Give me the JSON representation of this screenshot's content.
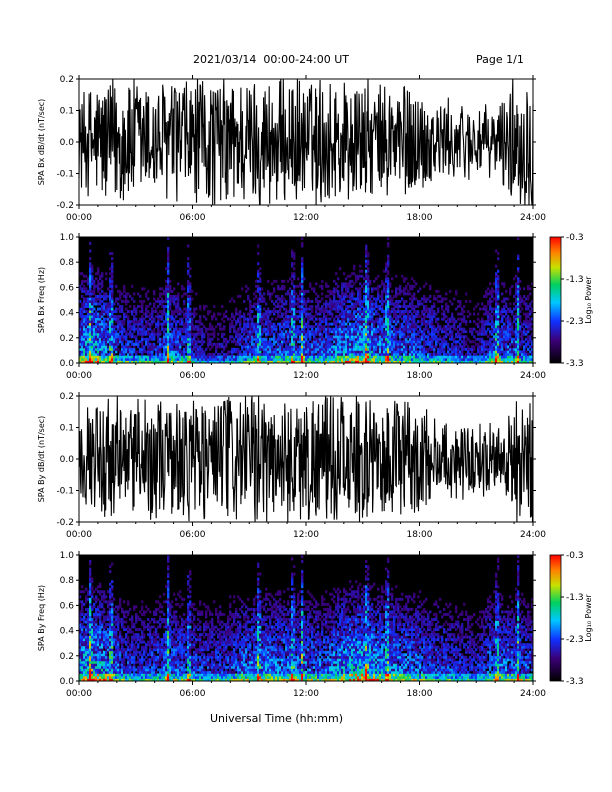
{
  "header": {
    "title": "2021/03/14  00:00-24:00 UT",
    "page": "Page 1/1"
  },
  "x_axis_label": "Universal Time (hh:mm)",
  "chart_data": [
    {
      "type": "line",
      "ylabel": "SPA Bx dB/dt (nT/sec)",
      "xlim": [
        0,
        24
      ],
      "ylim": [
        -0.2,
        0.2
      ],
      "xticks": [
        "00:00",
        "06:00",
        "12:00",
        "18:00",
        "24:00"
      ],
      "yticks": [
        "-0.2",
        "-0.1",
        "0.0",
        "0.1",
        "0.2"
      ],
      "envelope": {
        "hours": [
          0,
          1,
          2,
          3,
          4,
          5,
          6,
          7,
          8,
          9,
          10,
          11,
          12,
          13,
          14,
          15,
          16,
          17,
          18,
          19,
          20,
          21,
          22,
          23,
          24
        ],
        "amplitude": [
          0.14,
          0.19,
          0.2,
          0.2,
          0.18,
          0.19,
          0.2,
          0.2,
          0.2,
          0.2,
          0.2,
          0.2,
          0.19,
          0.2,
          0.2,
          0.18,
          0.17,
          0.2,
          0.16,
          0.13,
          0.12,
          0.11,
          0.1,
          0.2,
          0.2
        ]
      },
      "color": "#000000"
    },
    {
      "type": "heatmap",
      "ylabel": "SPA Bx Freq (Hz)",
      "xlim": [
        0,
        24
      ],
      "ylim": [
        0,
        1.0
      ],
      "xticks": [
        "00:00",
        "06:00",
        "12:00",
        "18:00",
        "24:00"
      ],
      "yticks": [
        "0.0",
        "0.2",
        "0.4",
        "0.6",
        "0.8",
        "1.0"
      ],
      "colorbar": {
        "label": "Log₁₀ Power",
        "ticks": [
          "-0.3",
          "-1.3",
          "-2.3",
          "-3.3"
        ],
        "range": [
          -3.3,
          -0.3
        ]
      },
      "bright_bands_hours": [
        0.6,
        1.7,
        4.7,
        5.8,
        9.5,
        11.3,
        11.8,
        15.2,
        16.3,
        22.1,
        23.2
      ],
      "activity_level_by_hour": [
        0.7,
        0.75,
        0.55,
        0.5,
        0.5,
        0.6,
        0.45,
        0.35,
        0.4,
        0.55,
        0.55,
        0.6,
        0.55,
        0.55,
        0.7,
        0.75,
        0.65,
        0.6,
        0.55,
        0.5,
        0.45,
        0.4,
        0.6,
        0.55,
        0.5
      ]
    },
    {
      "type": "line",
      "ylabel": "SPA By dB/dt (nT/sec)",
      "xlim": [
        0,
        24
      ],
      "ylim": [
        -0.2,
        0.2
      ],
      "xticks": [
        "00:00",
        "06:00",
        "12:00",
        "18:00",
        "24:00"
      ],
      "yticks": [
        "-0.2",
        "-0.1",
        "0.0",
        "0.1",
        "0.2"
      ],
      "envelope": {
        "hours": [
          0,
          1,
          2,
          3,
          4,
          5,
          6,
          7,
          8,
          9,
          10,
          11,
          12,
          13,
          14,
          15,
          16,
          17,
          18,
          19,
          20,
          21,
          22,
          23,
          24
        ],
        "amplitude": [
          0.13,
          0.18,
          0.2,
          0.2,
          0.17,
          0.19,
          0.2,
          0.2,
          0.2,
          0.2,
          0.19,
          0.2,
          0.19,
          0.2,
          0.2,
          0.18,
          0.17,
          0.2,
          0.16,
          0.13,
          0.12,
          0.11,
          0.1,
          0.2,
          0.2
        ]
      },
      "color": "#000000"
    },
    {
      "type": "heatmap",
      "ylabel": "SPA By Freq (Hz)",
      "xlim": [
        0,
        24
      ],
      "ylim": [
        0,
        1.0
      ],
      "xticks": [
        "00:00",
        "06:00",
        "12:00",
        "18:00",
        "24:00"
      ],
      "yticks": [
        "0.0",
        "0.2",
        "0.4",
        "0.6",
        "0.8",
        "1.0"
      ],
      "colorbar": {
        "label": "Log₁₀ Power",
        "ticks": [
          "-0.3",
          "-1.3",
          "-2.3",
          "-3.3"
        ],
        "range": [
          -3.3,
          -0.3
        ]
      },
      "bright_bands_hours": [
        0.6,
        1.7,
        4.7,
        5.8,
        9.5,
        11.3,
        11.8,
        15.2,
        16.3,
        22.1,
        23.2
      ],
      "activity_level_by_hour": [
        0.75,
        0.8,
        0.6,
        0.5,
        0.55,
        0.6,
        0.55,
        0.5,
        0.55,
        0.65,
        0.65,
        0.65,
        0.6,
        0.6,
        0.75,
        0.8,
        0.7,
        0.65,
        0.6,
        0.55,
        0.5,
        0.45,
        0.65,
        0.6,
        0.55
      ]
    }
  ]
}
